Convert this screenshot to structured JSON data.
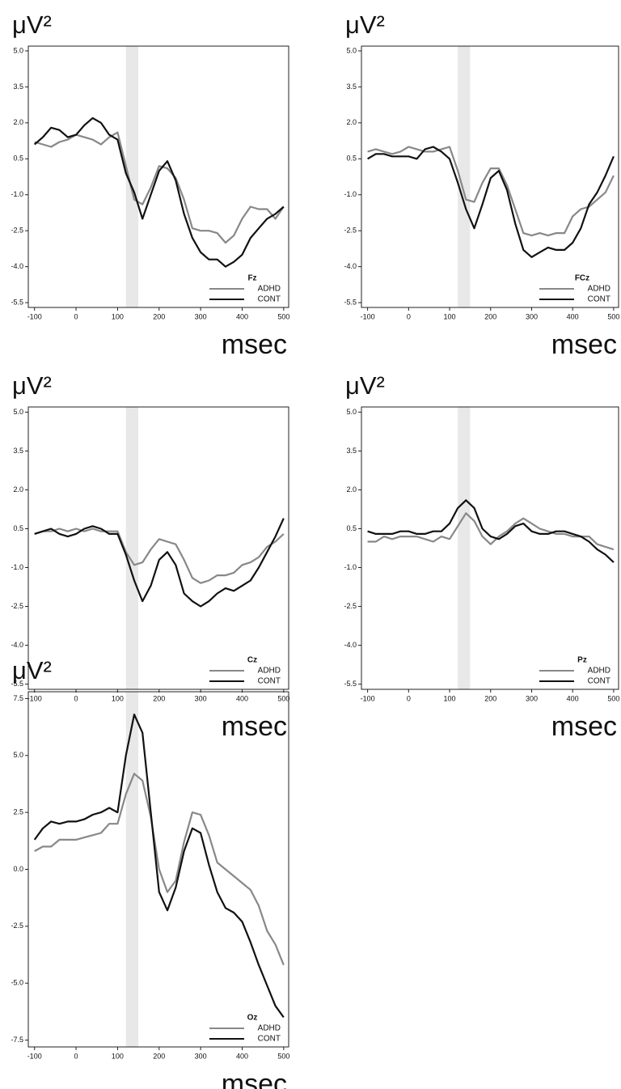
{
  "chart_data": [
    {
      "type": "line",
      "legend_title": "Fz",
      "y_label": "μV²",
      "x_label": "msec",
      "legend": "lower right",
      "shaded_region": [
        120,
        150
      ],
      "x": [
        -100,
        -80,
        -60,
        -40,
        -20,
        0,
        20,
        40,
        60,
        80,
        100,
        120,
        140,
        160,
        180,
        200,
        220,
        240,
        260,
        280,
        300,
        320,
        340,
        360,
        380,
        400,
        420,
        440,
        460,
        480,
        500
      ],
      "series": [
        {
          "name": "ADHD",
          "color": "#888888",
          "values": [
            1.2,
            1.1,
            1.0,
            1.2,
            1.3,
            1.5,
            1.4,
            1.3,
            1.1,
            1.4,
            1.6,
            0.2,
            -1.2,
            -1.4,
            -0.7,
            0.2,
            0.1,
            -0.3,
            -1.2,
            -2.4,
            -2.5,
            -2.5,
            -2.6,
            -3.0,
            -2.7,
            -2.0,
            -1.5,
            -1.6,
            -1.6,
            -2.0,
            -1.5
          ]
        },
        {
          "name": "CONT",
          "color": "#111111",
          "values": [
            1.1,
            1.4,
            1.8,
            1.7,
            1.4,
            1.5,
            1.9,
            2.2,
            2.0,
            1.5,
            1.3,
            -0.1,
            -0.9,
            -2.0,
            -1.0,
            0.0,
            0.4,
            -0.4,
            -1.8,
            -2.8,
            -3.4,
            -3.7,
            -3.7,
            -4.0,
            -3.8,
            -3.5,
            -2.8,
            -2.4,
            -2.0,
            -1.8,
            -1.5
          ]
        }
      ],
      "xlim": [
        -115,
        512
      ],
      "xticks": [
        -100,
        0,
        100,
        200,
        300,
        400,
        500
      ],
      "ylim": [
        -5.7,
        5.2
      ],
      "yticks": [
        -5.5,
        {
          "value": -4,
          "label": "-4.0"
        },
        -2.5,
        {
          "value": -1,
          "label": "-1.0"
        },
        0.5,
        {
          "value": 2,
          "label": "2.0"
        },
        3.5,
        {
          "value": 5,
          "label": "5.0"
        }
      ]
    },
    {
      "type": "line",
      "legend_title": "FCz",
      "y_label": "μV²",
      "x_label": "msec",
      "legend": "lower right",
      "shaded_region": [
        120,
        150
      ],
      "x": [
        -100,
        -80,
        -60,
        -40,
        -20,
        0,
        20,
        40,
        60,
        80,
        100,
        120,
        140,
        160,
        180,
        200,
        220,
        240,
        260,
        280,
        300,
        320,
        340,
        360,
        380,
        400,
        420,
        440,
        460,
        480,
        500
      ],
      "series": [
        {
          "name": "ADHD",
          "color": "#888888",
          "values": [
            0.8,
            0.9,
            0.8,
            0.7,
            0.8,
            1.0,
            0.9,
            0.8,
            0.8,
            0.9,
            1.0,
            0.0,
            -1.2,
            -1.3,
            -0.5,
            0.1,
            0.1,
            -0.6,
            -1.6,
            -2.6,
            -2.7,
            -2.6,
            -2.7,
            -2.6,
            -2.6,
            -1.9,
            -1.6,
            -1.5,
            -1.2,
            -0.9,
            -0.2
          ]
        },
        {
          "name": "CONT",
          "color": "#111111",
          "values": [
            0.5,
            0.7,
            0.7,
            0.6,
            0.6,
            0.6,
            0.5,
            0.9,
            1.0,
            0.8,
            0.5,
            -0.5,
            -1.6,
            -2.4,
            -1.4,
            -0.3,
            0.0,
            -0.8,
            -2.2,
            -3.3,
            -3.6,
            -3.4,
            -3.2,
            -3.3,
            -3.3,
            -3.0,
            -2.4,
            -1.4,
            -0.9,
            -0.2,
            0.6
          ]
        }
      ],
      "xlim": [
        -115,
        512
      ],
      "xticks": [
        -100,
        0,
        100,
        200,
        300,
        400,
        500
      ],
      "ylim": [
        -5.7,
        5.2
      ],
      "yticks": [
        -5.5,
        {
          "value": -4,
          "label": "-4.0"
        },
        -2.5,
        {
          "value": -1,
          "label": "-1.0"
        },
        0.5,
        {
          "value": 2,
          "label": "2.0"
        },
        3.5,
        {
          "value": 5,
          "label": "5.0"
        }
      ]
    },
    {
      "type": "line",
      "legend_title": "Cz",
      "y_label": "μV²",
      "x_label": "msec",
      "legend": "lower right",
      "shaded_region": [
        120,
        150
      ],
      "x": [
        -100,
        -80,
        -60,
        -40,
        -20,
        0,
        20,
        40,
        60,
        80,
        100,
        120,
        140,
        160,
        180,
        200,
        220,
        240,
        260,
        280,
        300,
        320,
        340,
        360,
        380,
        400,
        420,
        440,
        460,
        480,
        500
      ],
      "series": [
        {
          "name": "ADHD",
          "color": "#888888",
          "values": [
            0.3,
            0.4,
            0.4,
            0.5,
            0.4,
            0.5,
            0.4,
            0.5,
            0.4,
            0.4,
            0.4,
            -0.4,
            -0.9,
            -0.8,
            -0.3,
            0.1,
            0.0,
            -0.1,
            -0.7,
            -1.4,
            -1.6,
            -1.5,
            -1.3,
            -1.3,
            -1.2,
            -0.9,
            -0.8,
            -0.6,
            -0.2,
            0.0,
            0.3
          ]
        },
        {
          "name": "CONT",
          "color": "#111111",
          "values": [
            0.3,
            0.4,
            0.5,
            0.3,
            0.2,
            0.3,
            0.5,
            0.6,
            0.5,
            0.3,
            0.3,
            -0.5,
            -1.5,
            -2.3,
            -1.7,
            -0.7,
            -0.4,
            -0.9,
            -2.0,
            -2.3,
            -2.5,
            -2.3,
            -2.0,
            -1.8,
            -1.9,
            -1.7,
            -1.5,
            -1.0,
            -0.4,
            0.2,
            0.9
          ]
        }
      ],
      "xlim": [
        -115,
        512
      ],
      "xticks": [
        -100,
        0,
        100,
        200,
        300,
        400,
        500
      ],
      "ylim": [
        -5.7,
        5.2
      ],
      "yticks": [
        -5.5,
        {
          "value": -4,
          "label": "-4.0"
        },
        -2.5,
        {
          "value": -1,
          "label": "-1.0"
        },
        0.5,
        {
          "value": 2,
          "label": "2.0"
        },
        3.5,
        {
          "value": 5,
          "label": "5.0"
        }
      ]
    },
    {
      "type": "line",
      "legend_title": "Pz",
      "y_label": "μV²",
      "x_label": "msec",
      "legend": "lower right",
      "shaded_region": [
        120,
        150
      ],
      "x": [
        -100,
        -80,
        -60,
        -40,
        -20,
        0,
        20,
        40,
        60,
        80,
        100,
        120,
        140,
        160,
        180,
        200,
        220,
        240,
        260,
        280,
        300,
        320,
        340,
        360,
        380,
        400,
        420,
        440,
        460,
        480,
        500
      ],
      "series": [
        {
          "name": "ADHD",
          "color": "#888888",
          "values": [
            0.0,
            0.0,
            0.2,
            0.1,
            0.2,
            0.2,
            0.2,
            0.1,
            0.0,
            0.2,
            0.1,
            0.6,
            1.1,
            0.8,
            0.2,
            -0.1,
            0.2,
            0.4,
            0.7,
            0.9,
            0.7,
            0.5,
            0.4,
            0.3,
            0.3,
            0.2,
            0.2,
            0.2,
            -0.1,
            -0.2,
            -0.3
          ]
        },
        {
          "name": "CONT",
          "color": "#111111",
          "values": [
            0.4,
            0.3,
            0.3,
            0.3,
            0.4,
            0.4,
            0.3,
            0.3,
            0.4,
            0.4,
            0.7,
            1.3,
            1.6,
            1.3,
            0.5,
            0.2,
            0.1,
            0.3,
            0.6,
            0.7,
            0.4,
            0.3,
            0.3,
            0.4,
            0.4,
            0.3,
            0.2,
            0.0,
            -0.3,
            -0.5,
            -0.8
          ]
        }
      ],
      "xlim": [
        -115,
        512
      ],
      "xticks": [
        -100,
        0,
        100,
        200,
        300,
        400,
        500
      ],
      "ylim": [
        -5.7,
        5.2
      ],
      "yticks": [
        -5.5,
        {
          "value": -4,
          "label": "-4.0"
        },
        -2.5,
        {
          "value": -1,
          "label": "-1.0"
        },
        0.5,
        {
          "value": 2,
          "label": "2.0"
        },
        3.5,
        {
          "value": 5,
          "label": "5.0"
        }
      ]
    },
    {
      "type": "line",
      "legend_title": "Oz",
      "y_label": "μV²",
      "x_label": "msec",
      "legend": "lower right",
      "shaded_region": [
        120,
        150
      ],
      "x": [
        -100,
        -80,
        -60,
        -40,
        -20,
        0,
        20,
        40,
        60,
        80,
        100,
        120,
        140,
        160,
        180,
        200,
        220,
        240,
        260,
        280,
        300,
        320,
        340,
        360,
        380,
        400,
        420,
        440,
        460,
        480,
        500
      ],
      "series": [
        {
          "name": "ADHD",
          "color": "#888888",
          "values": [
            0.8,
            1.0,
            1.0,
            1.3,
            1.3,
            1.3,
            1.4,
            1.5,
            1.6,
            2.0,
            2.0,
            3.3,
            4.2,
            3.9,
            2.3,
            0.0,
            -1.0,
            -0.5,
            1.2,
            2.5,
            2.4,
            1.5,
            0.3,
            0.0,
            -0.3,
            -0.6,
            -0.9,
            -1.6,
            -2.7,
            -3.3,
            -4.2
          ]
        },
        {
          "name": "CONT",
          "color": "#111111",
          "values": [
            1.3,
            1.8,
            2.1,
            2.0,
            2.1,
            2.1,
            2.2,
            2.4,
            2.5,
            2.7,
            2.5,
            5.0,
            6.8,
            6.0,
            2.5,
            -1.0,
            -1.8,
            -0.8,
            0.8,
            1.8,
            1.6,
            0.2,
            -1.0,
            -1.7,
            -1.9,
            -2.3,
            -3.2,
            -4.2,
            -5.1,
            -6.0,
            -6.5
          ]
        }
      ],
      "xlim": [
        -115,
        512
      ],
      "xticks": [
        -100,
        0,
        100,
        200,
        300,
        400,
        500
      ],
      "ylim": [
        -7.8,
        7.8
      ],
      "yticks": [
        -7.5,
        {
          "value": -5,
          "label": "-5.0"
        },
        -2.5,
        {
          "value": 0,
          "label": "0.0"
        },
        2.5,
        {
          "value": 5,
          "label": "5.0"
        },
        7.5
      ]
    }
  ]
}
